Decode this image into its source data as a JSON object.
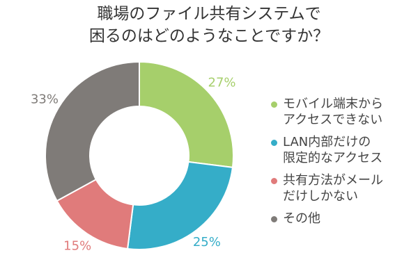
{
  "chart_data": {
    "type": "pie",
    "title_lines": [
      "職場のファイル共有システムで",
      "困るのはどのようなことですか？"
    ],
    "slices": [
      {
        "label_lines": [
          "モバイル端末から",
          "アクセスできない"
        ],
        "value": 27,
        "value_label": "27%",
        "color": "#a6cf6b"
      },
      {
        "label_lines": [
          "LAN内部だけの",
          "限定的なアクセス"
        ],
        "value": 25,
        "value_label": "25%",
        "color": "#35adc8"
      },
      {
        "label_lines": [
          "共有方法がメール",
          "だけしかない"
        ],
        "value": 15,
        "value_label": "15%",
        "color": "#e07b7b"
      },
      {
        "label_lines": [
          "その他"
        ],
        "value": 33,
        "value_label": "33%",
        "color": "#7f7b78"
      }
    ],
    "legend_position": "right",
    "donut": true
  }
}
